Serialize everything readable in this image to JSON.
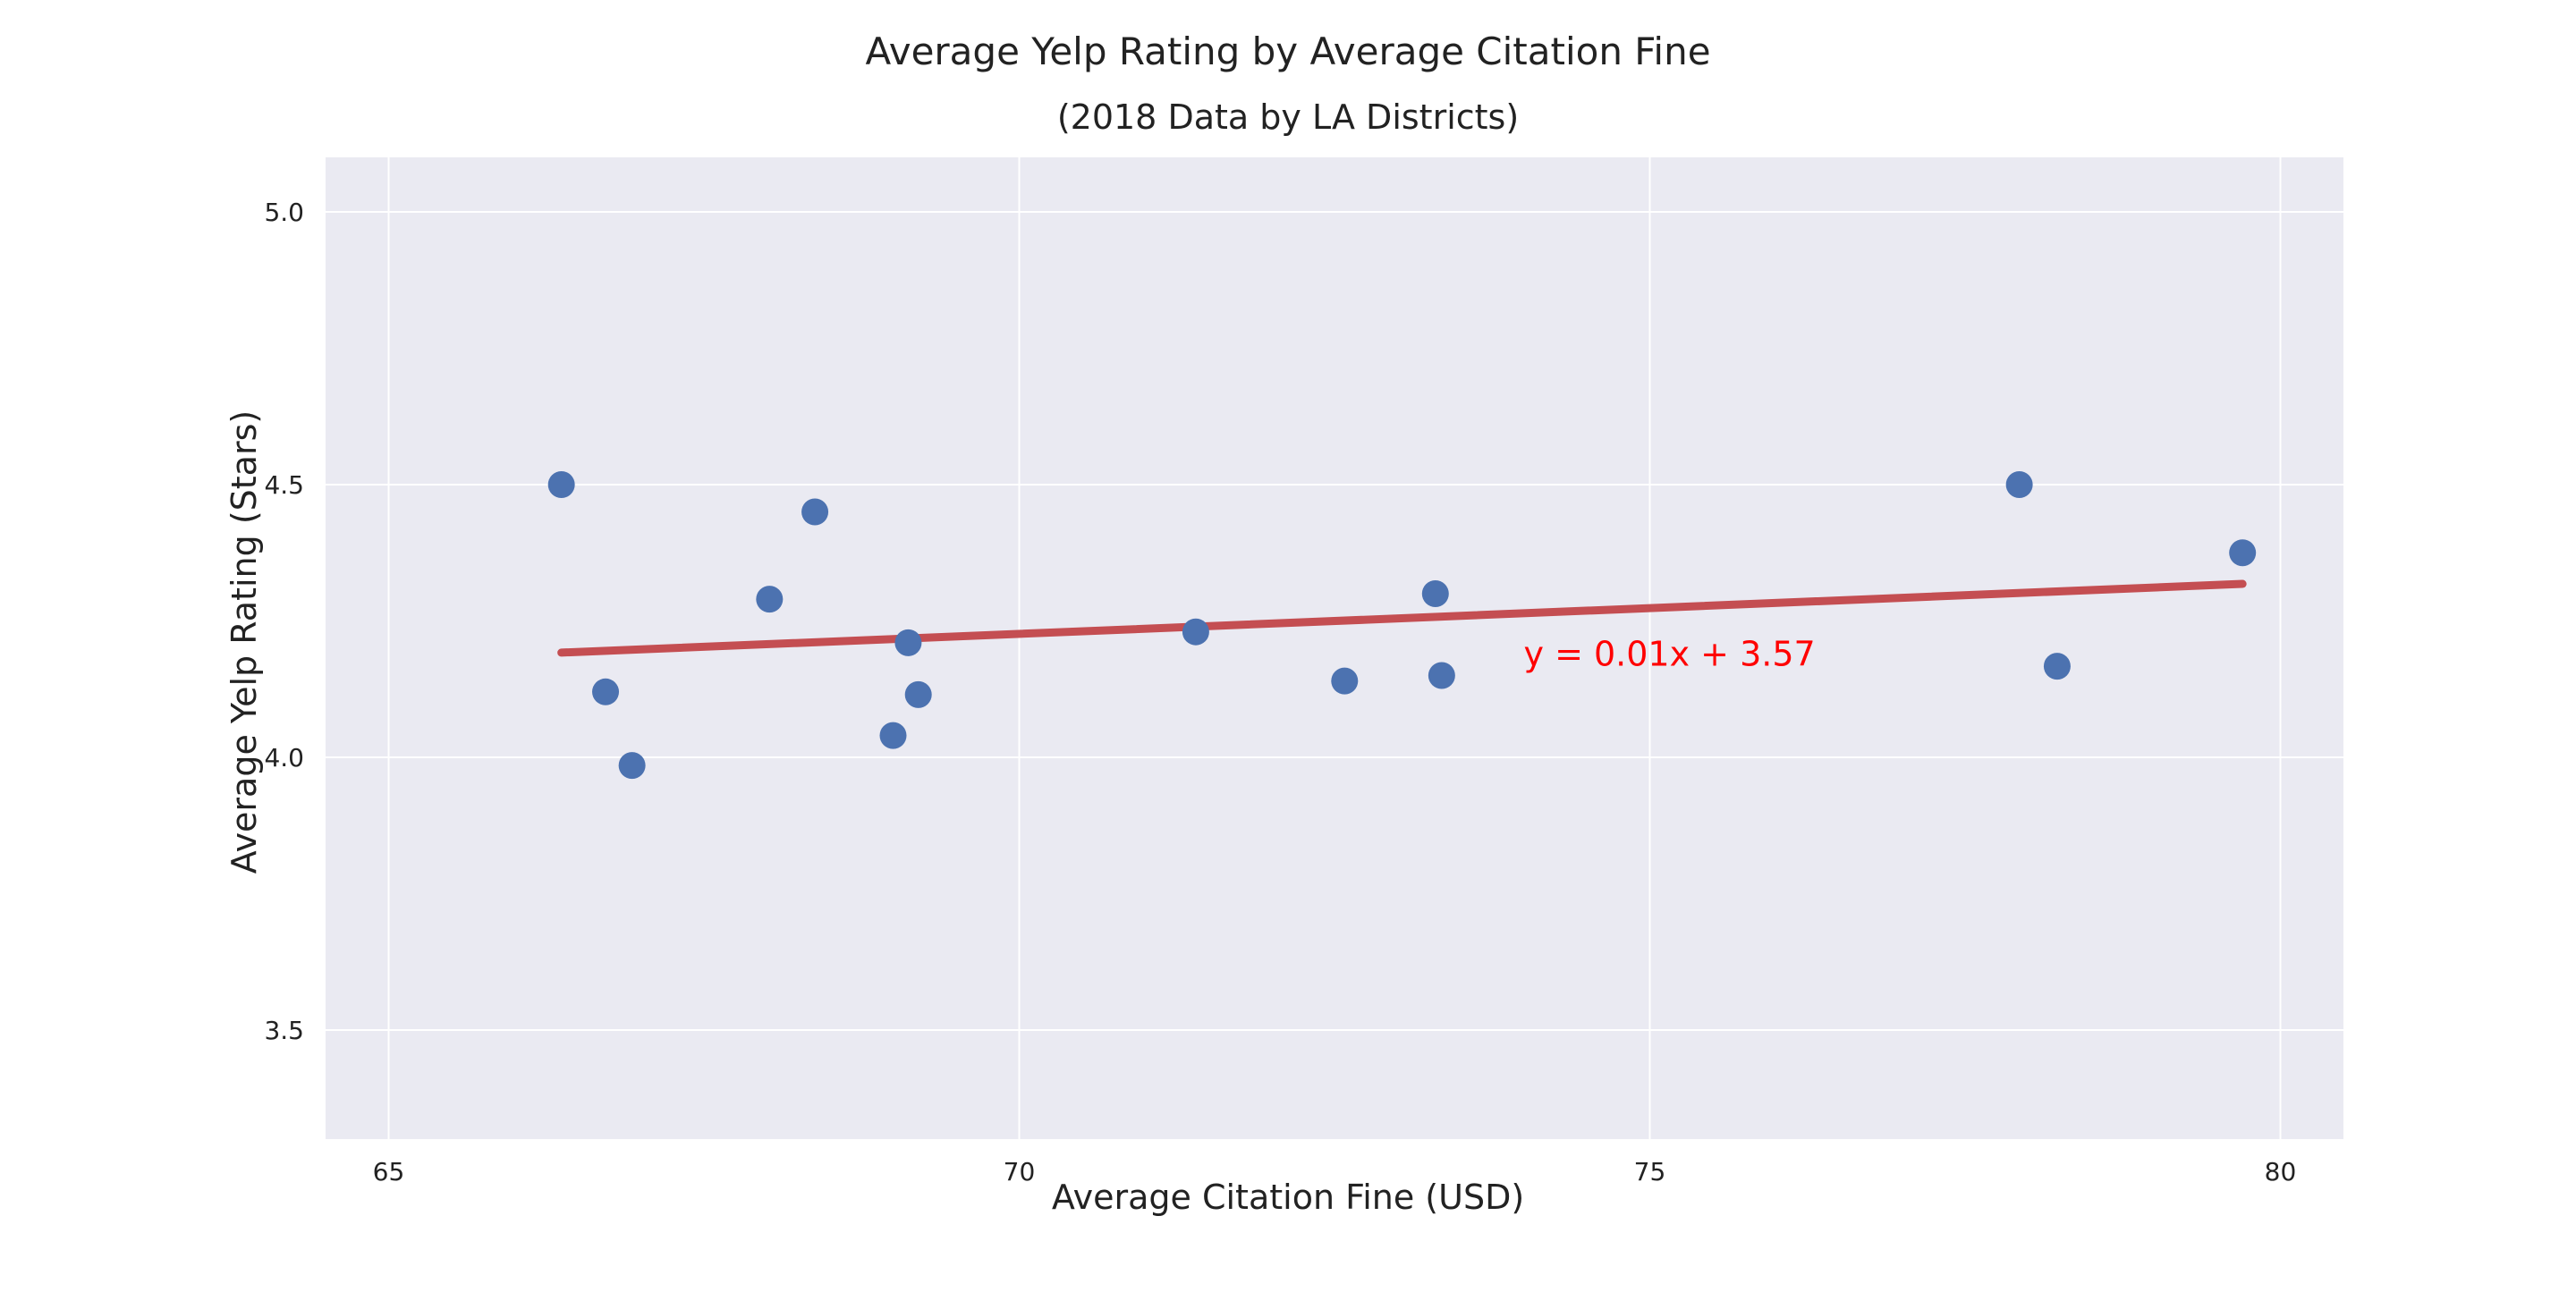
{
  "chart_data": {
    "type": "scatter",
    "title": "Average Yelp Rating by Average Citation Fine",
    "subtitle": "(2018 Data by LA Districts)",
    "xlabel": "Average Citation Fine (USD)",
    "ylabel": "Average Yelp Rating (Stars)",
    "xlim": [
      64.5,
      80.5
    ],
    "ylim": [
      3.3,
      5.1
    ],
    "xticks": [
      65,
      70,
      75,
      80
    ],
    "xtick_labels": [
      "65",
      "70",
      "75",
      "80"
    ],
    "yticks": [
      3.5,
      4.0,
      4.5,
      5.0
    ],
    "ytick_labels": [
      "3.5",
      "4.0",
      "4.5",
      "5.0"
    ],
    "grid": true,
    "series": [
      {
        "x": [
          66.37,
          66.72,
          66.93,
          68.02,
          68.38,
          69.0,
          69.12,
          69.2,
          71.4,
          72.58,
          73.3,
          73.35,
          77.93,
          78.23,
          79.7
        ],
        "y": [
          4.5,
          4.12,
          3.985,
          4.29,
          4.45,
          4.04,
          4.21,
          4.115,
          4.23,
          4.14,
          4.3,
          4.15,
          4.5,
          4.167,
          4.375
        ]
      }
    ],
    "regression": {
      "x": [
        66.37,
        79.7
      ],
      "y": [
        4.192,
        4.318
      ]
    },
    "annotation": {
      "text": "y = 0.01x + 3.57",
      "x": 74.0,
      "y": 4.168
    },
    "colors": {
      "points": "#4c72b0",
      "line": "#c44e52",
      "annotation": "#ff0000",
      "plot_background": "#eaeaf2",
      "grid": "#ffffff"
    }
  }
}
